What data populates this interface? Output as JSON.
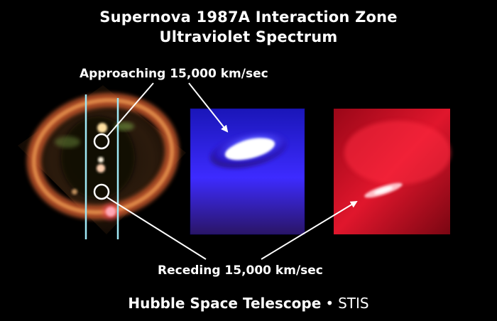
{
  "title_line1": "Supernova 1987A Interaction Zone",
  "title_line2": "Ultraviolet Spectrum",
  "label_approaching": "Approaching 15,000 km/sec",
  "label_receding": "Receding 15,000 km/sec",
  "credit_main": "Hubble Space Telescope",
  "credit_separator": "•",
  "credit_instrument": "STIS",
  "colors": {
    "background": "#000000",
    "slit_lines": "#9fe8f5",
    "blue_panel": "#3a2cff",
    "red_panel": "#e0122a",
    "text": "#ffffff"
  }
}
